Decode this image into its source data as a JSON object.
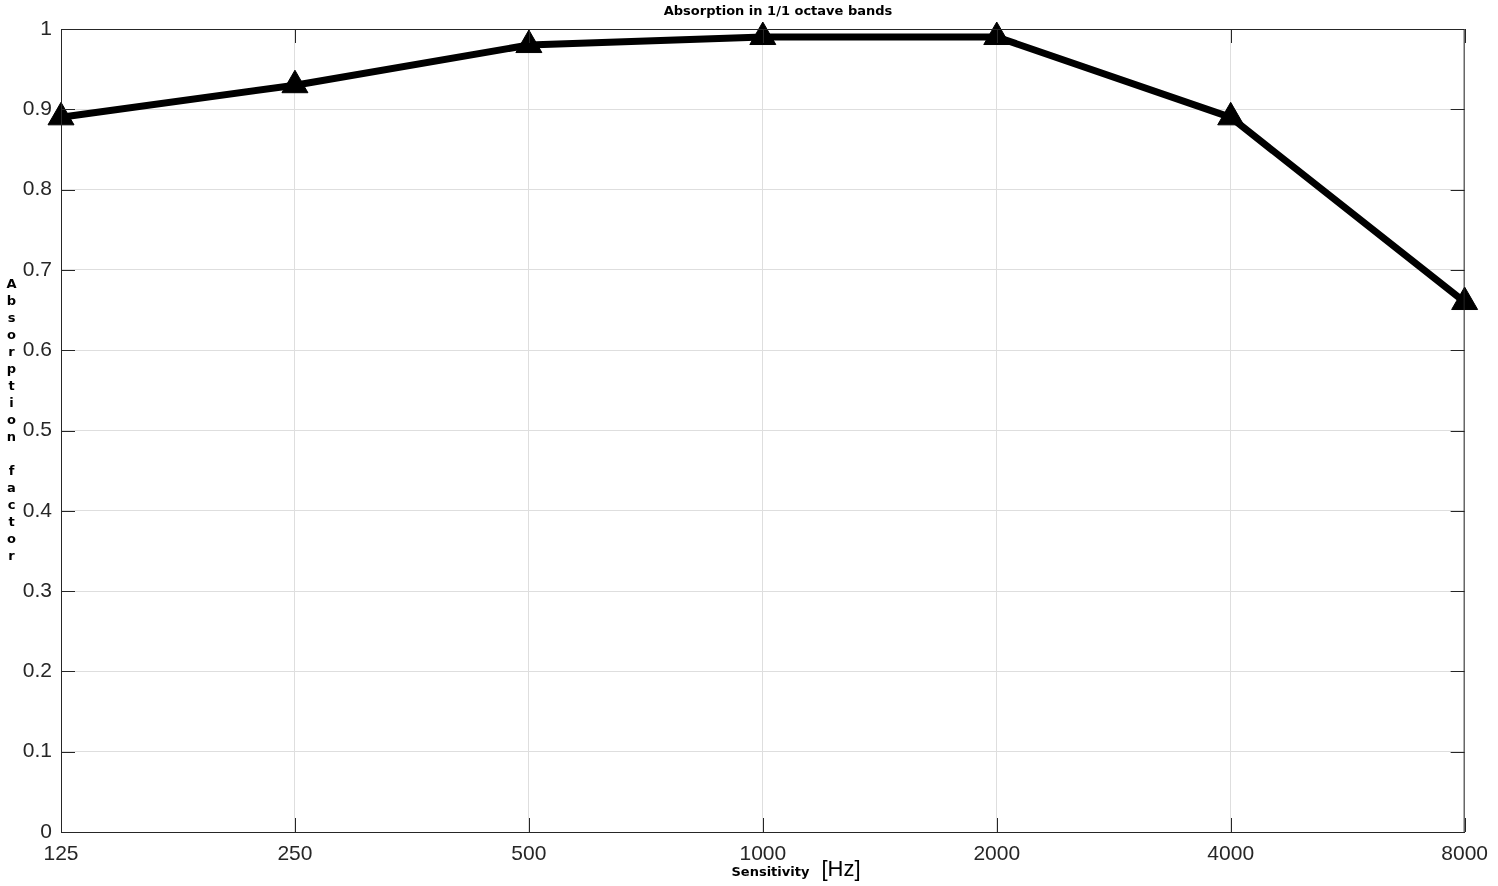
{
  "chart_data": {
    "type": "line",
    "title": "Absorption in 1/1 octave bands",
    "xlabel": "Sensitivity [Hz]",
    "ylabel": "Absorption factor",
    "categories": [
      "125",
      "250",
      "500",
      "1000",
      "2000",
      "4000",
      "8000"
    ],
    "values": [
      0.89,
      0.93,
      0.98,
      0.99,
      0.99,
      0.89,
      0.66
    ],
    "color": "#000000",
    "ylim": [
      0,
      1
    ],
    "yticks": [
      0,
      0.1,
      0.2,
      0.3,
      0.4,
      0.5,
      0.6,
      0.7,
      0.8,
      0.9,
      1
    ],
    "grid": true,
    "legend": false,
    "marker": "triangle",
    "line_style": "solid"
  }
}
